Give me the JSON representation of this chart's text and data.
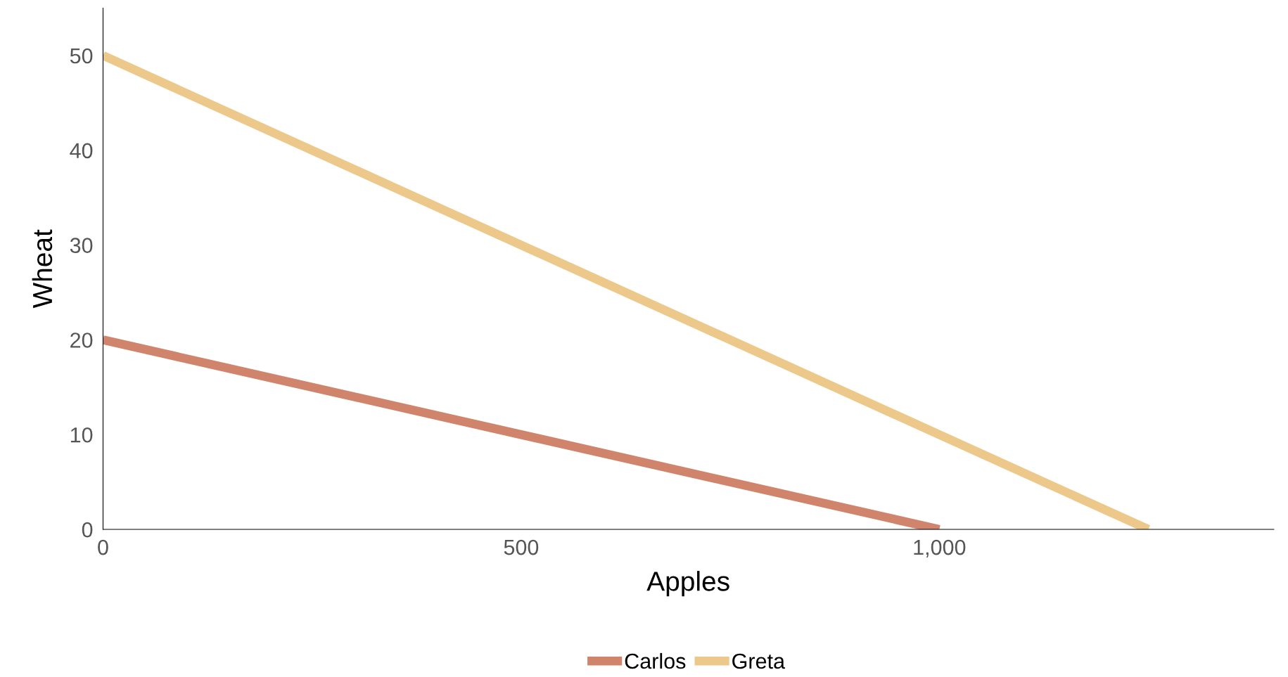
{
  "chart_data": {
    "type": "line",
    "xlabel": "Apples",
    "ylabel": "Wheat",
    "series": [
      {
        "name": "Carlos",
        "color": "#d0846c",
        "x": [
          0,
          1000
        ],
        "values": [
          20,
          0
        ]
      },
      {
        "name": "Greta",
        "color": "#ecc98a",
        "x": [
          0,
          1250
        ],
        "values": [
          50,
          0
        ]
      }
    ],
    "xlim": [
      0,
      1400
    ],
    "xticks": [
      0,
      500,
      {
        "value": 1000,
        "label": "1,000"
      }
    ],
    "ylim": [
      0,
      55
    ],
    "yticks": [
      0,
      10,
      20,
      30,
      40,
      50
    ],
    "grid": false,
    "legend": "bottom",
    "marker": "none",
    "line_style": "solid"
  }
}
